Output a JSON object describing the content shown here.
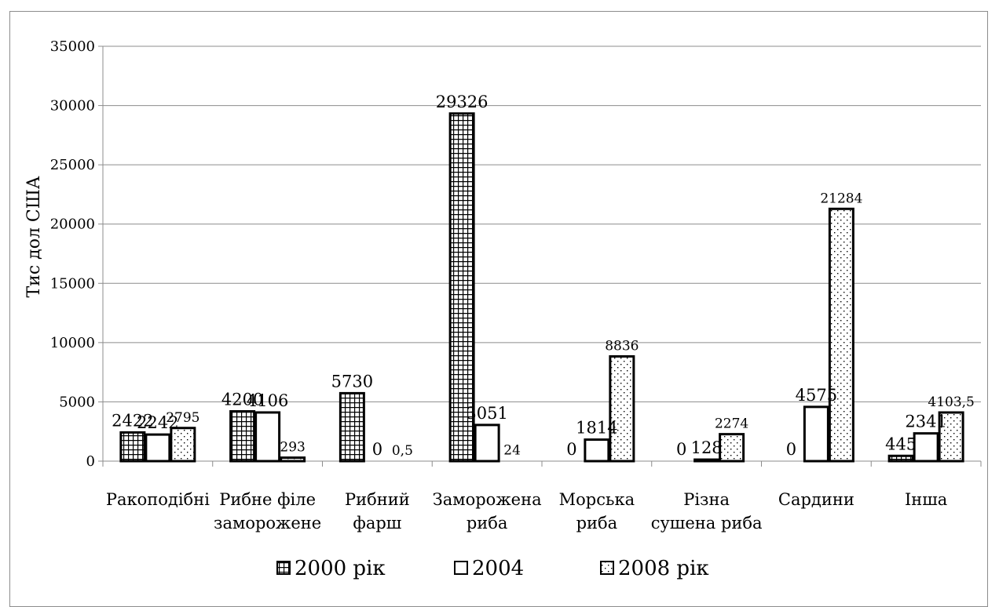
{
  "chart_data": {
    "type": "bar",
    "ylabel": "Тис дол США",
    "ylim": [
      0,
      35000
    ],
    "yticks": [
      "0",
      "5000",
      "10000",
      "15000",
      "20000",
      "25000",
      "30000",
      "35000"
    ],
    "grid": true,
    "legend_position": "bottom",
    "categories": [
      [
        "Ракоподібні"
      ],
      [
        "Рибне філе",
        "заморожене"
      ],
      [
        "Рибний",
        "фарш"
      ],
      [
        "Заморожена",
        "риба"
      ],
      [
        "Морська",
        "риба"
      ],
      [
        "Різна",
        "сушена риба"
      ],
      [
        "Сардини"
      ],
      [
        "Інша"
      ]
    ],
    "series": [
      {
        "name": "2000 рік",
        "pattern": "grid",
        "values": [
          2422,
          4200,
          5730,
          29326,
          0,
          0,
          0,
          445
        ],
        "labels": [
          "2422",
          "4200",
          "5730",
          "29326",
          "0",
          "0",
          "0",
          "445"
        ]
      },
      {
        "name": "2004",
        "pattern": "solid",
        "values": [
          2242,
          4106,
          0,
          3051,
          1814,
          128,
          4575,
          2341
        ],
        "labels": [
          "2242",
          "4106",
          "0",
          "3051",
          "1814",
          "128",
          "4575",
          "2341"
        ]
      },
      {
        "name": "2008 рік",
        "pattern": "dots",
        "values": [
          2795,
          293,
          0.5,
          24,
          8836,
          2274,
          21284,
          4103.5
        ],
        "labels": [
          "2795",
          "293",
          "0,5",
          "24",
          "8836",
          "2274",
          "21284",
          "4103,5"
        ]
      }
    ],
    "colors": {
      "bar_stroke": "#000000",
      "fill": "#ffffff",
      "grid": "#8c8c8c"
    }
  }
}
